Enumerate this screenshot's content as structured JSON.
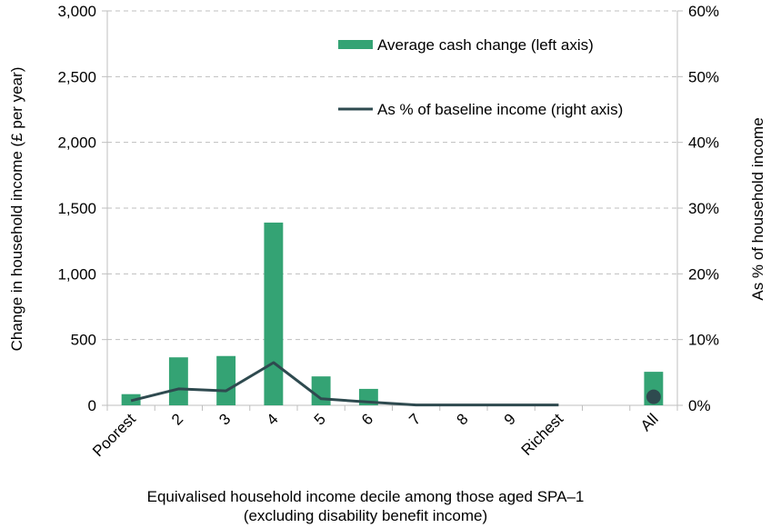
{
  "chart_data": {
    "type": "bar+line",
    "categories": [
      "Poorest",
      "2",
      "3",
      "4",
      "5",
      "6",
      "7",
      "8",
      "9",
      "Richest",
      "",
      "All"
    ],
    "series": [
      {
        "name": "Average cash change (left axis)",
        "type": "bar",
        "axis": "left",
        "values": [
          85,
          365,
          375,
          1390,
          220,
          125,
          0,
          0,
          0,
          0,
          null,
          255
        ]
      },
      {
        "name": "As % of baseline income (right axis)",
        "type": "line",
        "axis": "right",
        "values": [
          0.7,
          2.5,
          2.2,
          6.5,
          1.0,
          0.5,
          0.05,
          0.05,
          0.05,
          0.05,
          null,
          1.3
        ]
      }
    ],
    "xlabel_line1": "Equivalised household income decile among those aged SPA–1",
    "xlabel_line2": "(excluding disability benefit income)",
    "ylabel": "Change in household income (£ per year)",
    "y2label": "As % of household income",
    "ylim": [
      0,
      3000
    ],
    "y2lim": [
      0,
      60
    ],
    "yticks": [
      "0",
      "500",
      "1,000",
      "1,500",
      "2,000",
      "2,500",
      "3,000"
    ],
    "y2ticks": [
      "0%",
      "10%",
      "20%",
      "30%",
      "40%",
      "50%",
      "60%"
    ],
    "grid": true,
    "legend_position": "top-right",
    "colors": {
      "bar": "#34a374",
      "line": "#2e4a4f",
      "grid": "#bfbfbf",
      "axis": "#bfbfbf"
    }
  }
}
